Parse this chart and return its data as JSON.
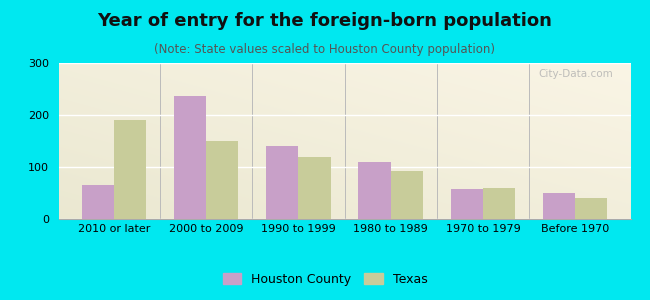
{
  "title": "Year of entry for the foreign-born population",
  "subtitle": "(Note: State values scaled to Houston County population)",
  "categories": [
    "2010 or later",
    "2000 to 2009",
    "1990 to 1999",
    "1980 to 1989",
    "1970 to 1979",
    "Before 1970"
  ],
  "houston_values": [
    65,
    237,
    140,
    110,
    58,
    50
  ],
  "texas_values": [
    190,
    150,
    120,
    93,
    60,
    40
  ],
  "houston_color": "#c8a0c8",
  "texas_color": "#c8cc9a",
  "background_outer": "#00e8f0",
  "ylim": [
    0,
    300
  ],
  "yticks": [
    0,
    100,
    200,
    300
  ],
  "bar_width": 0.35,
  "legend_houston": "Houston County",
  "legend_texas": "Texas",
  "watermark": "City-Data.com",
  "title_fontsize": 13,
  "subtitle_fontsize": 8.5,
  "tick_fontsize": 8,
  "legend_fontsize": 9
}
